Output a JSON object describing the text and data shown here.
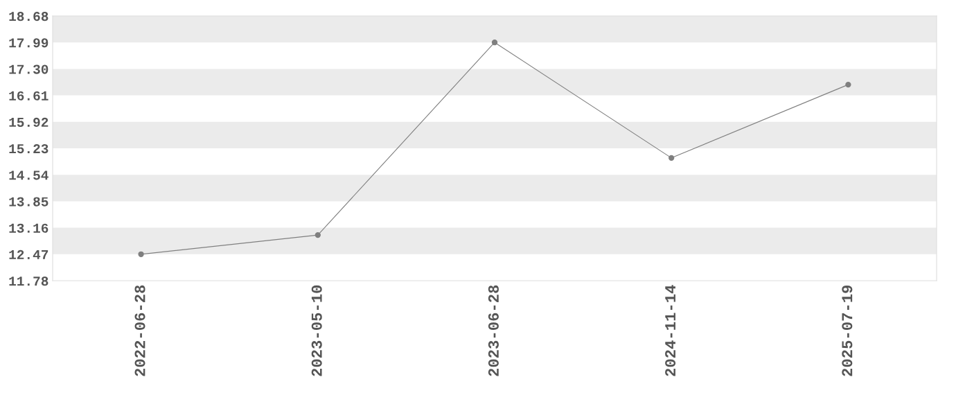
{
  "chart_data": {
    "type": "line",
    "categories": [
      "2022-06-28",
      "2023-05-10",
      "2023-06-28",
      "2024-11-14",
      "2025-07-19"
    ],
    "series": [
      {
        "color": "#7f7f7f",
        "values": [
          12.47,
          12.97,
          17.99,
          14.98,
          16.89
        ]
      }
    ],
    "ylim": [
      11.78,
      18.68
    ],
    "yticks": [
      {
        "value": 11.78,
        "label": "11.78"
      },
      {
        "value": 12.47,
        "label": "12.47"
      },
      {
        "value": 13.16,
        "label": "13.16"
      },
      {
        "value": 13.85,
        "label": "13.85"
      },
      {
        "value": 14.54,
        "label": "14.54"
      },
      {
        "value": 15.23,
        "label": "15.23"
      },
      {
        "value": 15.92,
        "label": "15.92"
      },
      {
        "value": 16.61,
        "label": "16.61"
      },
      {
        "value": 17.3,
        "label": "17.30"
      },
      {
        "value": 17.99,
        "label": "17.99"
      },
      {
        "value": 18.68,
        "label": "18.68"
      }
    ],
    "bands": [
      {
        "axis": "y",
        "from": 12.47,
        "to": 13.16,
        "color": "#ebebeb"
      },
      {
        "axis": "y",
        "from": 13.85,
        "to": 14.54,
        "color": "#ebebeb"
      },
      {
        "axis": "y",
        "from": 15.23,
        "to": 15.92,
        "color": "#ebebeb"
      },
      {
        "axis": "y",
        "from": 16.61,
        "to": 17.3,
        "color": "#ebebeb"
      },
      {
        "axis": "y",
        "from": 17.99,
        "to": 18.68,
        "color": "#ebebeb"
      }
    ],
    "marker": "circle",
    "line_style": "solid",
    "grid": false,
    "legend": false
  }
}
